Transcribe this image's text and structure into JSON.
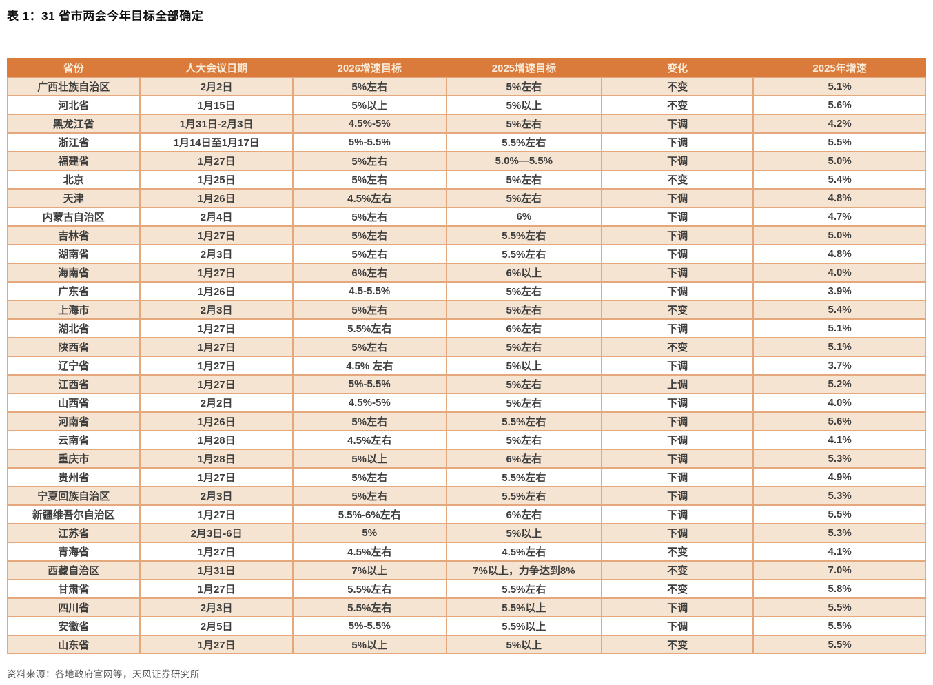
{
  "title": "表 1：31 省市两会今年目标全部确定",
  "source": "资料来源：各地政府官网等，天风证券研究所",
  "colors": {
    "header_bg": "#DA7B3B",
    "header_text": "#FAEBD9",
    "stripe_bg": "#F6E4D2",
    "border": "#E5A77C",
    "down_green": "#55B45E",
    "up_red": "#E23B2E",
    "highlight_red": "#E02B20"
  },
  "table": {
    "headers": [
      "省份",
      "人大会议日期",
      "2026增速目标",
      "2025增速目标",
      "变化",
      "2025年增速"
    ],
    "rows": [
      {
        "province": "广西壮族自治区",
        "date": "2月2日",
        "target_2026": "5%左右",
        "target_2025": "5%左右",
        "change": "不变",
        "change_type": "same",
        "growth_2025": "5.1%"
      },
      {
        "province": "河北省",
        "date": "1月15日",
        "target_2026": "5%以上",
        "target_2025": "5%以上",
        "change": "不变",
        "change_type": "same",
        "growth_2025": "5.6%"
      },
      {
        "province": "黑龙江省",
        "date": "1月31日-2月3日",
        "target_2026": "4.5%-5%",
        "target_2025": "5%左右",
        "change": "下调",
        "change_type": "down",
        "growth_2025": "4.2%"
      },
      {
        "province": "浙江省",
        "date": "1月14日至1月17日",
        "target_2026": "5%-5.5%",
        "target_2025": "5.5%左右",
        "change": "下调",
        "change_type": "down",
        "growth_2025": "5.5%"
      },
      {
        "province": "福建省",
        "date": "1月27日",
        "target_2026": "5%左右",
        "target_2025": "5.0%—5.5%",
        "change": "下调",
        "change_type": "down",
        "growth_2025": "5.0%"
      },
      {
        "province": "北京",
        "date": "1月25日",
        "target_2026": "5%左右",
        "target_2025": "5%左右",
        "change": "不变",
        "change_type": "same",
        "growth_2025": "5.4%"
      },
      {
        "province": "天津",
        "date": "1月26日",
        "target_2026": "4.5%左右",
        "target_2025": "5%左右",
        "change": "下调",
        "change_type": "down",
        "growth_2025": "4.8%"
      },
      {
        "province": "内蒙古自治区",
        "date": "2月4日",
        "target_2026": "5%左右",
        "target_2025": "6%",
        "change": "下调",
        "change_type": "down",
        "growth_2025": "4.7%"
      },
      {
        "province": "吉林省",
        "date": "1月27日",
        "target_2026": "5%左右",
        "target_2025": "5.5%左右",
        "change": "下调",
        "change_type": "down",
        "growth_2025": "5.0%"
      },
      {
        "province": "湖南省",
        "date": "2月3日",
        "target_2026": "5%左右",
        "target_2025": "5.5%左右",
        "change": "下调",
        "change_type": "down",
        "growth_2025": "4.8%"
      },
      {
        "province": "海南省",
        "date": "1月27日",
        "target_2026": "6%左右",
        "target_2025": "6%以上",
        "change": "下调",
        "change_type": "down",
        "growth_2025": "4.0%"
      },
      {
        "province": "广东省",
        "date": "1月26日",
        "target_2026": "4.5-5.5%",
        "target_2025": "5%左右",
        "change": "下调",
        "change_type": "down",
        "growth_2025": "3.9%"
      },
      {
        "province": "上海市",
        "date": "2月3日",
        "target_2026": "5%左右",
        "target_2025": "5%左右",
        "change": "不变",
        "change_type": "same",
        "growth_2025": "5.4%"
      },
      {
        "province": "湖北省",
        "date": "1月27日",
        "target_2026": "5.5%左右",
        "target_2025": "6%左右",
        "change": "下调",
        "change_type": "down",
        "growth_2025": "5.1%"
      },
      {
        "province": "陕西省",
        "date": "1月27日",
        "target_2026": "5%左右",
        "target_2025": "5%左右",
        "change": "不变",
        "change_type": "same",
        "growth_2025": "5.1%"
      },
      {
        "province": "辽宁省",
        "date": "1月27日",
        "target_2026": "4.5% 左右",
        "target_2025": "5%以上",
        "change": "下调",
        "change_type": "down",
        "growth_2025": "3.7%"
      },
      {
        "province": "江西省",
        "date": "1月27日",
        "target_2026": "5%-5.5%",
        "target_2025": "5%左右",
        "change": "上调",
        "change_type": "up",
        "growth_2025": "5.2%"
      },
      {
        "province": "山西省",
        "date": "2月2日",
        "target_2026": "4.5%-5%",
        "target_2025": "5%左右",
        "change": "下调",
        "change_type": "down",
        "growth_2025": "4.0%"
      },
      {
        "province": "河南省",
        "date": "1月26日",
        "target_2026": "5%左右",
        "target_2025": "5.5%左右",
        "change": "下调",
        "change_type": "down",
        "growth_2025": "5.6%"
      },
      {
        "province": "云南省",
        "date": "1月28日",
        "target_2026": "4.5%左右",
        "target_2025": "5%左右",
        "change": "下调",
        "change_type": "down",
        "growth_2025": "4.1%"
      },
      {
        "province": "重庆市",
        "date": "1月28日",
        "target_2026": "5%以上",
        "target_2025": "6%左右",
        "change": "下调",
        "change_type": "down",
        "growth_2025": "5.3%"
      },
      {
        "province": "贵州省",
        "date": "1月27日",
        "target_2026": "5%左右",
        "target_2025": "5.5%左右",
        "change": "下调",
        "change_type": "down",
        "growth_2025": "4.9%"
      },
      {
        "province": "宁夏回族自治区",
        "date": "2月3日",
        "target_2026": "5%左右",
        "target_2025": "5.5%左右",
        "change": "下调",
        "change_type": "down",
        "growth_2025": "5.3%"
      },
      {
        "province": "新疆维吾尔自治区",
        "date": "1月27日",
        "target_2026": "5.5%-6%左右",
        "target_2025": "6%左右",
        "change": "下调",
        "change_type": "down",
        "growth_2025": "5.5%"
      },
      {
        "province": "江苏省",
        "date": "2月3日-6日",
        "target_2026": "5%",
        "target_2025": "5%以上",
        "change": "下调",
        "change_type": "down",
        "growth_2025": "5.3%"
      },
      {
        "province": "青海省",
        "date": "1月27日",
        "target_2026": "4.5%左右",
        "target_2025": "4.5%左右",
        "change": "不变",
        "change_type": "same",
        "growth_2025": "4.1%"
      },
      {
        "province": "西藏自治区",
        "date": "1月31日",
        "target_2026": "7%以上",
        "target_2026_red": true,
        "target_2025": "7%以上，力争达到8%",
        "change": "不变",
        "change_type": "same",
        "growth_2025": "7.0%"
      },
      {
        "province": "甘肃省",
        "date": "1月27日",
        "target_2026": "5.5%左右",
        "target_2025": "5.5%左右",
        "change": "不变",
        "change_type": "same",
        "growth_2025": "5.8%"
      },
      {
        "province": "四川省",
        "date": "2月3日",
        "target_2026": "5.5%左右",
        "target_2025": "5.5%以上",
        "change": "下调",
        "change_type": "down",
        "growth_2025": "5.5%"
      },
      {
        "province": "安徽省",
        "date": "2月5日",
        "target_2026": "5%-5.5%",
        "target_2025": "5.5%以上",
        "change": "下调",
        "change_type": "down",
        "growth_2025": "5.5%"
      },
      {
        "province": "山东省",
        "date": "1月27日",
        "target_2026": "5%以上",
        "target_2025": "5%以上",
        "change": "不变",
        "change_type": "same",
        "growth_2025": "5.5%"
      }
    ]
  }
}
